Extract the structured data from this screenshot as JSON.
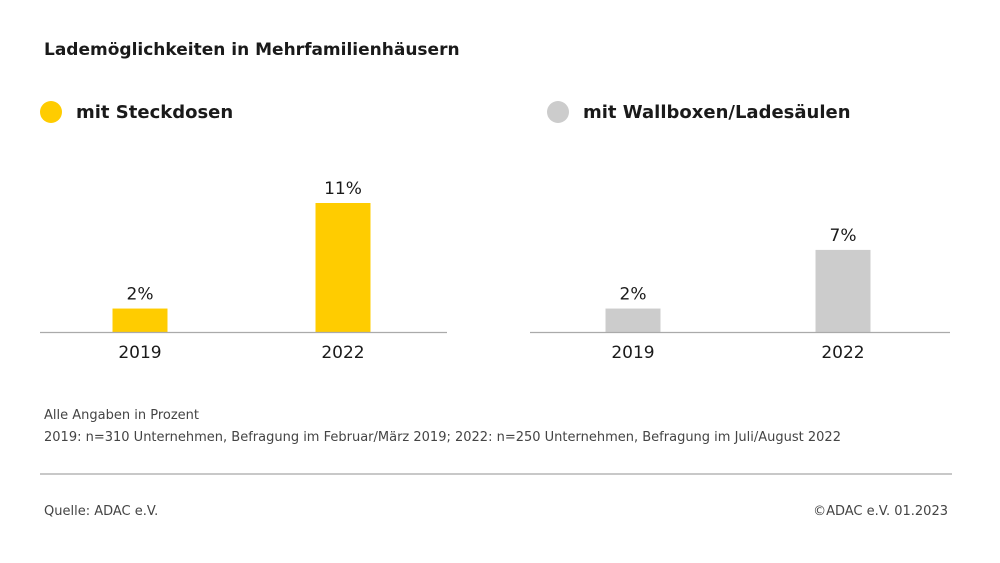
{
  "title": "Lademöglichkeiten in Mehrfamilienhäusern",
  "colors": {
    "yellow": "#FFCC00",
    "gray": "#CCCCCC",
    "axis": "#AAAAAA"
  },
  "chart_data": [
    {
      "type": "bar",
      "legend": "mit Steckdosen",
      "categories": [
        "2019",
        "2022"
      ],
      "values": [
        2,
        11
      ],
      "value_labels": [
        "2%",
        "11%"
      ],
      "unit": "%",
      "color": "#FFCC00"
    },
    {
      "type": "bar",
      "legend": "mit Wallboxen/Ladesäulen",
      "categories": [
        "2019",
        "2022"
      ],
      "values": [
        2,
        7
      ],
      "value_labels": [
        "2%",
        "7%"
      ],
      "unit": "%",
      "color": "#CCCCCC"
    }
  ],
  "notes": {
    "line1": "Alle Angaben in Prozent",
    "line2": "2019: n=310 Unternehmen, Befragung im Februar/März 2019; 2022: n=250 Unternehmen, Befragung im Juli/August 2022"
  },
  "footer": {
    "source": "Quelle: ADAC e.V.",
    "copyright": "©ADAC e.V.  01.2023"
  }
}
